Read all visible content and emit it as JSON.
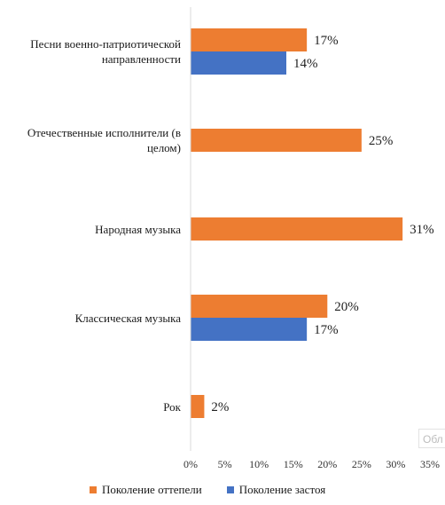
{
  "chart_data": {
    "type": "bar",
    "orientation": "horizontal",
    "categories": [
      "Песни военно-патриотической направленности",
      "Отечественные исполнители (в целом)",
      "Народная музыка",
      "Классическая музыка",
      "Рок"
    ],
    "series": [
      {
        "name": "Поколение оттепели",
        "color": "#ED7D31",
        "values": [
          17,
          25,
          31,
          20,
          2
        ]
      },
      {
        "name": "Поколение застоя",
        "color": "#4472C4",
        "values": [
          14,
          null,
          null,
          17,
          null
        ]
      }
    ],
    "xlim": [
      0,
      35
    ],
    "x_ticks": [
      "0%",
      "5%",
      "10%",
      "15%",
      "20%",
      "25%",
      "30%",
      "35%"
    ],
    "value_suffix": "%",
    "grid": false,
    "legend_position": "bottom"
  },
  "watermark_text": "Обл"
}
